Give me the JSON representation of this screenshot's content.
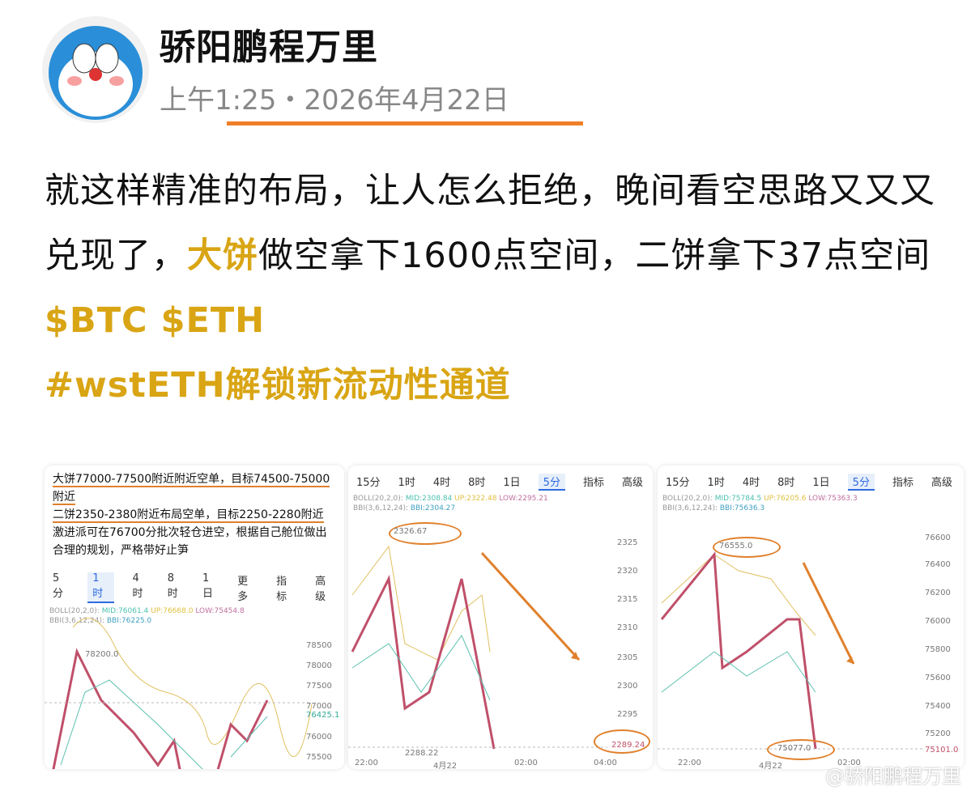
{
  "post": {
    "author": "骄阳鹏程万里",
    "time": "上午1:25・2026年4月22日",
    "body": {
      "t1": "就这样精准的布局，让人怎么拒绝，晚间看空思路又又又兑现了，",
      "t2": "大饼",
      "t3": "做空拿下1600点空间，二饼拿下37点空间",
      "t4": "$BTC $ETH",
      "t5": "#wstETH解锁新流动性通道"
    }
  },
  "card1": {
    "notes": [
      "大饼77000-77500附近附近空单，目标74500-75000附近",
      "二饼2350-2380附近布局空单，目标2250-2280附近",
      "激进派可在76700分批次轻仓进空，根据自己舱位做出合理的规划，严格带好止笋"
    ],
    "tabs": [
      "5分",
      "1时",
      "4时",
      "8时",
      "1日",
      "更多",
      "指标",
      "高级"
    ],
    "ind1": "BOLL(20,2,0):",
    "mid": "MID:76061.4",
    "up": "UP:76668.0",
    "low": "LOW:75454.8",
    "ind2": "BBI(3,6,12,24):",
    "bbi": "BBI:76225.0",
    "high_label": "78200.0",
    "axis": [
      "78500",
      "78000",
      "77500",
      "77000",
      "76425.1",
      "76000",
      "75500"
    ]
  },
  "card2": {
    "tabs": [
      "15分",
      "1时",
      "4时",
      "8时",
      "1日",
      "5分",
      "指标",
      "高级"
    ],
    "ind1": "BOLL(20,2,0):",
    "mid": "MID:2308.84",
    "up": "UP:2322.48",
    "low": "LOW:2295.21",
    "ind2": "BBI(3,6,12,24):",
    "bbi": "BBI:2304.27",
    "high_label": "2326.67",
    "low_label": "2288.22",
    "last": "2289.24",
    "axis": [
      "2325",
      "2320",
      "2315",
      "2310",
      "2305",
      "2300",
      "2295"
    ],
    "xaxis": [
      "22:00",
      "4月22",
      "02:00",
      "04:00"
    ]
  },
  "card3": {
    "tabs": [
      "15分",
      "1时",
      "4时",
      "8时",
      "1日",
      "5分",
      "指标",
      "高级"
    ],
    "ind1": "BOLL(20,2,0):",
    "mid": "MID:75784.5",
    "up": "UP:76205.6",
    "low": "LOW:75363.3",
    "ind2": "BBI(3,6,12,24):",
    "bbi": "BBI:75636.3",
    "high_label": "76555.0",
    "low_label": "75077.0",
    "last": "75101.0",
    "axis": [
      "76600",
      "76400",
      "76200",
      "76000",
      "75800",
      "75600",
      "75400",
      "75200"
    ],
    "xaxis": [
      "22:00",
      "4月22",
      "02:00"
    ]
  },
  "watermark": "@骄阳鹏程万里",
  "colors": {
    "accent": "#d9a514",
    "underline": "#f07f2a",
    "up": "#3cb371",
    "down": "#c0506a"
  }
}
